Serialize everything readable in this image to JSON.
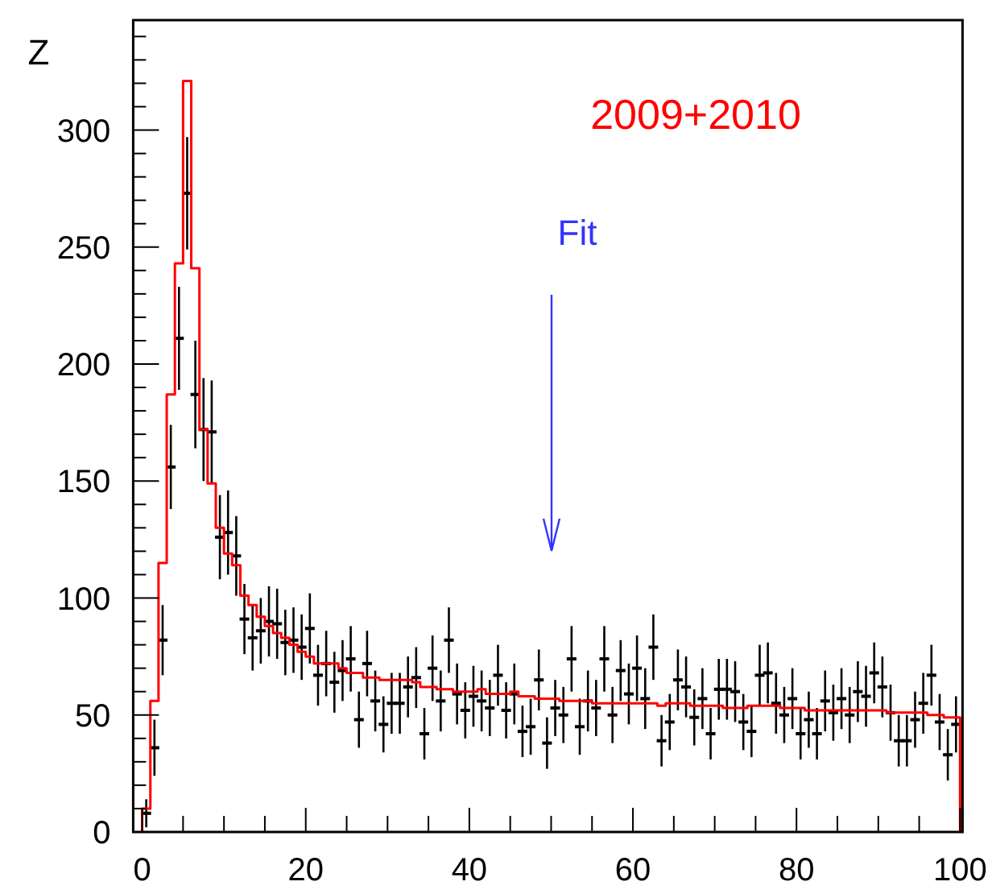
{
  "chart_data": {
    "type": "scatter",
    "ylabel": "Z",
    "xlim": [
      -1.1,
      100.3
    ],
    "xticks": [
      0,
      {
        "value": 5,
        "label": null
      },
      {
        "value": 10,
        "label": null
      },
      {
        "value": 15,
        "label": null
      },
      20,
      {
        "value": 25,
        "label": null
      },
      {
        "value": 30,
        "label": null
      },
      {
        "value": 35,
        "label": null
      },
      40,
      {
        "value": 45,
        "label": null
      },
      {
        "value": 50,
        "label": null
      },
      {
        "value": 55,
        "label": null
      },
      60,
      {
        "value": 65,
        "label": null
      },
      {
        "value": 70,
        "label": null
      },
      {
        "value": 75,
        "label": null
      },
      80,
      {
        "value": 85,
        "label": null
      },
      {
        "value": 90,
        "label": null
      },
      {
        "value": 95,
        "label": null
      },
      100
    ],
    "ylim": [
      0,
      347
    ],
    "yticks": [
      0,
      {
        "value": 10,
        "label": null
      },
      {
        "value": 20,
        "label": null
      },
      {
        "value": 30,
        "label": null
      },
      {
        "value": 40,
        "label": null
      },
      50,
      {
        "value": 60,
        "label": null
      },
      {
        "value": 70,
        "label": null
      },
      {
        "value": 80,
        "label": null
      },
      {
        "value": 90,
        "label": null
      },
      100,
      {
        "value": 110,
        "label": null
      },
      {
        "value": 120,
        "label": null
      },
      {
        "value": 130,
        "label": null
      },
      {
        "value": 140,
        "label": null
      },
      150,
      {
        "value": 160,
        "label": null
      },
      {
        "value": 170,
        "label": null
      },
      {
        "value": 180,
        "label": null
      },
      {
        "value": 190,
        "label": null
      },
      200,
      {
        "value": 210,
        "label": null
      },
      {
        "value": 220,
        "label": null
      },
      {
        "value": 230,
        "label": null
      },
      {
        "value": 240,
        "label": null
      },
      250,
      {
        "value": 260,
        "label": null
      },
      {
        "value": 270,
        "label": null
      },
      {
        "value": 280,
        "label": null
      },
      {
        "value": 290,
        "label": null
      },
      300,
      {
        "value": 310,
        "label": null
      },
      {
        "value": 320,
        "label": null
      },
      {
        "value": 330,
        "label": null
      },
      {
        "value": 340,
        "label": null
      }
    ],
    "grid": false,
    "legend": false,
    "annotations": [
      "2009+2010",
      "Fit"
    ],
    "series": [
      {
        "color": "#000000",
        "x": [
          0.5,
          1.5,
          2.5,
          3.5,
          4.5,
          5.5,
          6.5,
          7.5,
          8.5,
          9.5,
          10.5,
          11.5,
          12.5,
          13.5,
          14.5,
          15.5,
          16.5,
          17.5,
          18.5,
          19.5,
          20.5,
          21.5,
          22.5,
          23.5,
          24.5,
          25.5,
          26.5,
          27.5,
          28.5,
          29.5,
          30.5,
          31.5,
          32.5,
          33.5,
          34.5,
          35.5,
          36.5,
          37.5,
          38.5,
          39.5,
          40.5,
          41.5,
          42.5,
          43.5,
          44.5,
          45.5,
          46.5,
          47.5,
          48.5,
          49.5,
          50.5,
          51.5,
          52.5,
          53.5,
          54.5,
          55.5,
          56.5,
          57.5,
          58.5,
          59.5,
          60.5,
          61.5,
          62.5,
          63.5,
          64.5,
          65.5,
          66.5,
          67.5,
          68.5,
          69.5,
          70.5,
          71.5,
          72.5,
          73.5,
          74.5,
          75.5,
          76.5,
          77.5,
          78.5,
          79.5,
          80.5,
          81.5,
          82.5,
          83.5,
          84.5,
          85.5,
          86.5,
          87.5,
          88.5,
          89.5,
          90.5,
          91.5,
          92.5,
          93.5,
          94.5,
          95.5,
          96.5,
          97.5,
          98.5,
          99.5
        ],
        "values": [
          8,
          36,
          82,
          156,
          211,
          273,
          187,
          172,
          171,
          126,
          128,
          118,
          91,
          83,
          86,
          90,
          89,
          81,
          82,
          79,
          87,
          67,
          72,
          64,
          69,
          74,
          48,
          72,
          56,
          46,
          55,
          55,
          62,
          66,
          42,
          70,
          56,
          82,
          59,
          52,
          58,
          56,
          53,
          67,
          52,
          59,
          43,
          45,
          65,
          38,
          53,
          50,
          74,
          45,
          56,
          53,
          74,
          50,
          69,
          59,
          70,
          57,
          79,
          39,
          47,
          65,
          62,
          49,
          57,
          42,
          61,
          61,
          60,
          47,
          43,
          67,
          68,
          55,
          50,
          57,
          42,
          48,
          42,
          56,
          51,
          57,
          50,
          60,
          58,
          68,
          62,
          51,
          39,
          39,
          48,
          55,
          67,
          47,
          33,
          46
        ],
        "errors": [
          6,
          12,
          15,
          18,
          22,
          24,
          23,
          22,
          22,
          18,
          18,
          17,
          15,
          14,
          14,
          15,
          15,
          14,
          14,
          14,
          15,
          13,
          14,
          13,
          13,
          14,
          12,
          14,
          13,
          12,
          13,
          13,
          13,
          13,
          11,
          14,
          13,
          14,
          13,
          12,
          13,
          13,
          12,
          13,
          12,
          13,
          11,
          12,
          13,
          11,
          12,
          12,
          14,
          12,
          13,
          12,
          14,
          12,
          13,
          13,
          14,
          13,
          14,
          11,
          12,
          13,
          13,
          12,
          13,
          11,
          13,
          13,
          13,
          12,
          11,
          13,
          13,
          13,
          12,
          13,
          11,
          12,
          11,
          13,
          12,
          13,
          12,
          13,
          13,
          13,
          13,
          12,
          11,
          11,
          12,
          13,
          13,
          12,
          11,
          12
        ]
      },
      {
        "type": "histogram",
        "color": "#ff0000",
        "bins": [
          0,
          1,
          2,
          3,
          4,
          5,
          6,
          7,
          8,
          9,
          10,
          11,
          12,
          13,
          14,
          15,
          16,
          17,
          18,
          19,
          20,
          21,
          22,
          23,
          24,
          25,
          26,
          27,
          28,
          29,
          30,
          31,
          32,
          33,
          34,
          35,
          36,
          37,
          38,
          39,
          40,
          41,
          42,
          43,
          44,
          45,
          46,
          47,
          48,
          49,
          50,
          51,
          52,
          53,
          54,
          55,
          56,
          57,
          58,
          59,
          60,
          61,
          62,
          63,
          64,
          65,
          66,
          67,
          68,
          69,
          70,
          71,
          72,
          73,
          74,
          75,
          76,
          77,
          78,
          79,
          80,
          81,
          82,
          83,
          84,
          85,
          86,
          87,
          88,
          89,
          90,
          91,
          92,
          93,
          94,
          95,
          96,
          97,
          98,
          99,
          100
        ],
        "values": [
          10,
          56,
          115,
          187,
          243,
          321,
          241,
          172,
          149,
          130,
          119,
          114,
          101,
          97,
          92,
          88,
          85,
          83,
          80,
          77,
          75,
          72,
          72,
          72,
          70,
          68,
          68,
          66,
          66,
          65,
          65,
          65,
          65,
          64,
          62,
          62,
          61,
          61,
          60,
          60,
          60,
          61,
          59,
          59,
          59,
          60,
          58,
          58,
          57,
          57,
          57,
          56,
          56,
          56,
          56,
          55,
          55,
          55,
          55,
          55,
          55,
          55,
          55,
          54,
          55,
          55,
          55,
          54,
          54,
          54,
          54,
          53,
          53,
          53,
          54,
          54,
          54,
          54,
          53,
          53,
          53,
          52,
          52,
          52,
          52,
          52,
          52,
          52,
          52,
          52,
          52,
          51,
          51,
          51,
          51,
          51,
          50,
          50,
          49,
          49
        ]
      }
    ]
  }
}
